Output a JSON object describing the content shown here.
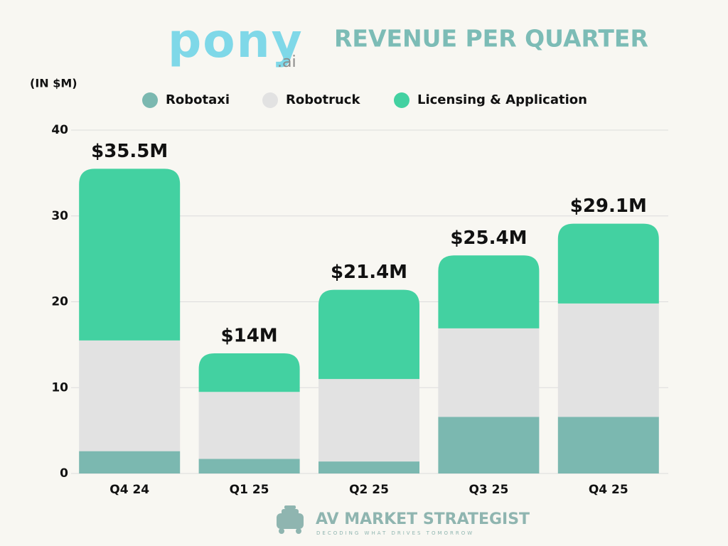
{
  "logo": {
    "text": "pony",
    "suffix": ".ai"
  },
  "footer": {
    "title": "AV MARKET STRATEGIST",
    "tagline": "DECODING WHAT DRIVES TOMORROW"
  },
  "chart_data": {
    "type": "stacked_bar",
    "title": "REVENUE PER QUARTER",
    "y_label": "(IN $M)",
    "categories": [
      "Q4 24",
      "Q1 25",
      "Q2 25",
      "Q3 25",
      "Q4 25"
    ],
    "series": [
      {
        "name": "Robotaxi",
        "color": "#7bb8b0",
        "values": [
          2.6,
          1.7,
          1.4,
          6.6,
          6.6
        ]
      },
      {
        "name": "Robotruck",
        "color": "#e2e2e2",
        "values": [
          12.9,
          7.8,
          9.6,
          10.3,
          13.2
        ]
      },
      {
        "name": "Licensing & Application",
        "color": "#43d1a1",
        "values": [
          20.0,
          4.5,
          10.4,
          8.5,
          9.3
        ]
      }
    ],
    "totals": {
      "values": [
        35.5,
        14,
        21.4,
        25.4,
        29.1
      ],
      "value_labels": [
        "$35.5M",
        "$14M",
        "$21.4M",
        "$25.4M",
        "$29.1M"
      ]
    },
    "ylim": [
      0,
      40
    ],
    "yticks": [
      0,
      10,
      20,
      30,
      40
    ],
    "grid": true
  }
}
